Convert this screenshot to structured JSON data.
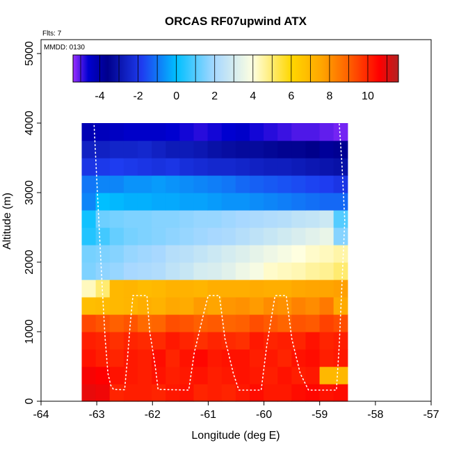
{
  "chart_data": {
    "type": "heatmap",
    "title": "ORCAS RF07upwind ATX",
    "annotations": {
      "flights": "Flts: 7",
      "date": "MMDD: 0130"
    },
    "xlabel": "Longitude (deg E)",
    "ylabel": "Altitude (m)",
    "xlim": [
      -64,
      -57
    ],
    "ylim": [
      0,
      5200
    ],
    "xticks": [
      -64,
      -63,
      -62,
      -61,
      -60,
      -59,
      -58,
      -57
    ],
    "yticks": [
      0,
      1000,
      2000,
      3000,
      4000,
      5000
    ],
    "colorbar": {
      "range": [
        -5.4,
        11.6
      ],
      "ticks": [
        -4,
        -2,
        0,
        2,
        4,
        6,
        8,
        10
      ],
      "colors": [
        "#9b30ff",
        "#0000d0",
        "#00008b",
        "#1e3cf0",
        "#00bfff",
        "#a8d8ff",
        "#ffffe0",
        "#ffd700",
        "#ffa500",
        "#ff6000",
        "#ff0000",
        "#b22222"
      ],
      "stops": [
        -5.4,
        -4.6,
        -3.6,
        -1.8,
        0,
        2,
        4,
        6,
        7.6,
        9,
        10.6,
        11.6
      ]
    },
    "grid_x_range": [
      -63.27,
      -58.5
    ],
    "grid_columns": 19,
    "row_altitudes": [
      125,
      375,
      625,
      875,
      1125,
      1375,
      1625,
      1875,
      2125,
      2375,
      2625,
      2875,
      3125,
      3375,
      3625,
      3875
    ],
    "values": [
      [
        10.9,
        10.8,
        10.0,
        10.1,
        10.1,
        10.0,
        10.2,
        10.3,
        10.0,
        10.1,
        10.0,
        10.2,
        10.4,
        10.2,
        10.2,
        10.4,
        10.5,
        10.3,
        10.4
      ],
      [
        10.7,
        10.6,
        10.3,
        10.2,
        10.1,
        10.3,
        10.1,
        10.2,
        10.3,
        10.1,
        10.2,
        10.3,
        10.2,
        10.1,
        10.3,
        10.1,
        10.2,
        7.0,
        7.0
      ],
      [
        10.3,
        10.1,
        10.0,
        10.2,
        10.1,
        10.4,
        10.0,
        10.3,
        10.5,
        10.2,
        10.3,
        10.3,
        10.1,
        10.2,
        10.0,
        10.3,
        10.4,
        10.1,
        10.2
      ],
      [
        10.1,
        10.0,
        9.8,
        10.0,
        9.9,
        9.9,
        10.2,
        10.0,
        9.8,
        10.0,
        9.9,
        9.8,
        10.2,
        10.0,
        10.1,
        10.0,
        10.3,
        10.0,
        10.1
      ],
      [
        9.4,
        9.2,
        9.0,
        9.2,
        8.8,
        8.9,
        9.3,
        9.2,
        9.0,
        9.1,
        8.9,
        9.0,
        9.3,
        9.1,
        8.9,
        9.2,
        9.1,
        9.5,
        9.3
      ],
      [
        6.8,
        6.9,
        7.0,
        7.1,
        7.3,
        7.2,
        7.5,
        7.4,
        7.8,
        7.6,
        7.9,
        8.0,
        7.8,
        8.1,
        8.0,
        8.3,
        8.1,
        8.5,
        7.4
      ],
      [
        4.3,
        5.0,
        7.0,
        7.1,
        6.9,
        7.0,
        7.2,
        7.2,
        7.1,
        7.3,
        7.3,
        7.3,
        7.4,
        7.3,
        7.3,
        7.5,
        7.6,
        7.6,
        7.7
      ],
      [
        1.5,
        1.7,
        1.8,
        2.0,
        2.1,
        2.2,
        2.5,
        2.7,
        3.0,
        3.1,
        3.3,
        3.6,
        3.8,
        4.2,
        4.3,
        4.4,
        4.6,
        4.7,
        5.0
      ],
      [
        1.4,
        1.5,
        1.6,
        1.8,
        1.9,
        2.0,
        2.3,
        2.4,
        2.6,
        2.8,
        3.0,
        3.2,
        3.4,
        3.6,
        3.8,
        4.0,
        4.2,
        4.3,
        4.5
      ],
      [
        0.4,
        0.8,
        1.2,
        1.4,
        1.5,
        1.6,
        1.7,
        1.8,
        1.9,
        2.0,
        2.1,
        2.3,
        2.5,
        2.7,
        2.9,
        3.1,
        3.3,
        3.5,
        1.6
      ],
      [
        0.2,
        1.3,
        1.4,
        1.5,
        1.5,
        1.6,
        1.6,
        1.7,
        1.8,
        1.8,
        1.9,
        2.0,
        2.1,
        2.2,
        2.3,
        2.5,
        2.6,
        2.8,
        1.0
      ],
      [
        -0.8,
        0.0,
        -0.1,
        -0.2,
        -0.2,
        -0.3,
        -0.3,
        -0.4,
        -0.4,
        -0.5,
        -0.6,
        -0.6,
        -0.7,
        -0.8,
        -0.9,
        -1.0,
        -1.1,
        -1.2,
        -1.2
      ],
      [
        -1.0,
        -0.8,
        -0.8,
        -0.6,
        -0.6,
        -0.5,
        -0.6,
        -0.7,
        -0.8,
        -0.9,
        -1.0,
        -1.2,
        -1.3,
        -1.4,
        -1.5,
        -1.6,
        -1.7,
        -1.8,
        -2.0
      ],
      [
        -2.0,
        -1.9,
        -1.8,
        -1.9,
        -2.0,
        -2.1,
        -2.0,
        -2.2,
        -2.3,
        -2.4,
        -2.4,
        -2.5,
        -2.6,
        -2.7,
        -2.7,
        -2.8,
        -2.9,
        -3.0,
        -3.1
      ],
      [
        -2.6,
        -2.6,
        -2.5,
        -2.5,
        -2.4,
        -2.6,
        -2.8,
        -2.8,
        -2.9,
        -3.1,
        -3.2,
        -3.3,
        -3.3,
        -3.4,
        -3.5,
        -3.5,
        -3.6,
        -3.8,
        -3.7
      ],
      [
        -4.2,
        -4.3,
        -4.4,
        -4.5,
        -4.5,
        -4.5,
        -4.6,
        -4.7,
        -4.8,
        -4.7,
        -4.6,
        -4.5,
        -4.7,
        -4.8,
        -4.9,
        -5.0,
        -5.0,
        -5.1,
        -5.2
      ]
    ],
    "flight_track": [
      [
        -63.05,
        4020
      ],
      [
        -63.0,
        3200
      ],
      [
        -62.95,
        2400
      ],
      [
        -62.9,
        1600
      ],
      [
        -62.85,
        900
      ],
      [
        -62.8,
        400
      ],
      [
        -62.75,
        230
      ],
      [
        -62.7,
        170
      ],
      [
        -62.5,
        165
      ],
      [
        -62.45,
        600
      ],
      [
        -62.4,
        1100
      ],
      [
        -62.35,
        1520
      ],
      [
        -62.1,
        1520
      ],
      [
        -62.05,
        1000
      ],
      [
        -61.95,
        500
      ],
      [
        -61.9,
        170
      ],
      [
        -61.35,
        160
      ],
      [
        -61.25,
        700
      ],
      [
        -61.1,
        1200
      ],
      [
        -61.0,
        1520
      ],
      [
        -60.8,
        1520
      ],
      [
        -60.7,
        900
      ],
      [
        -60.55,
        400
      ],
      [
        -60.45,
        160
      ],
      [
        -60.05,
        160
      ],
      [
        -59.95,
        800
      ],
      [
        -59.8,
        1520
      ],
      [
        -59.6,
        1520
      ],
      [
        -59.5,
        900
      ],
      [
        -59.35,
        400
      ],
      [
        -59.2,
        160
      ],
      [
        -58.7,
        160
      ],
      [
        -58.65,
        800
      ],
      [
        -58.6,
        1700
      ],
      [
        -58.55,
        2600
      ],
      [
        -58.6,
        3400
      ],
      [
        -58.65,
        4000
      ]
    ]
  }
}
